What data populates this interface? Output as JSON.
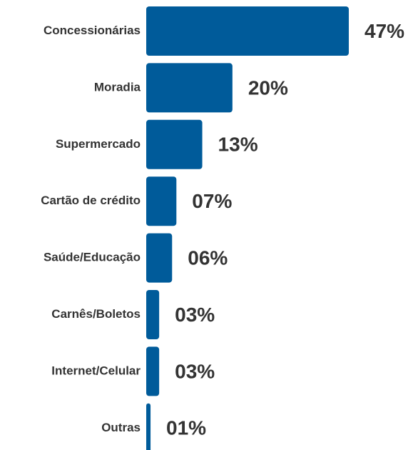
{
  "chart_data": {
    "type": "bar",
    "orientation": "horizontal",
    "categories": [
      "Concessionárias",
      "Moradia",
      "Supermercado",
      "Cartão de crédito",
      "Saúde/Educação",
      "Carnês/Boletos",
      "Internet/Celular",
      "Outras"
    ],
    "values": [
      47,
      20,
      13,
      7,
      6,
      3,
      3,
      1
    ],
    "value_labels": [
      "47%",
      "20%",
      "13%",
      "07%",
      "06%",
      "03%",
      "03%",
      "01%"
    ],
    "color": "#005b9a"
  }
}
